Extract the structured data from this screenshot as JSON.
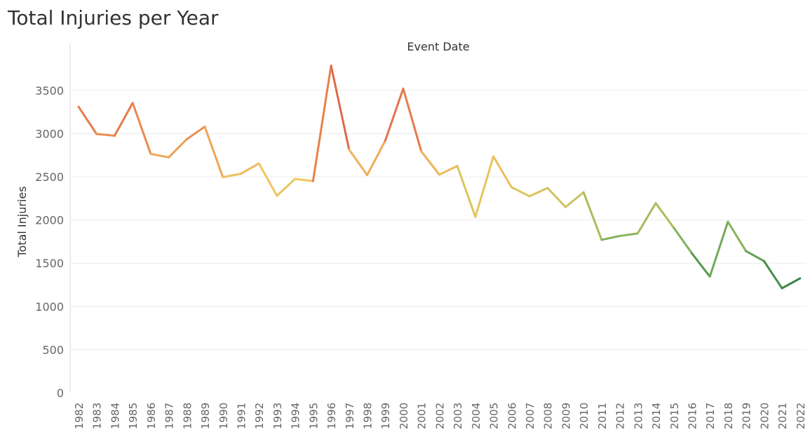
{
  "page_title": "Total Injuries per Year",
  "chart_data": {
    "type": "line",
    "title": "Total Injuries per Year",
    "column_header": "Event Date",
    "xlabel": "",
    "ylabel": "Total Injuries",
    "ylim": [
      0,
      3880
    ],
    "yticks": [
      0,
      500,
      1000,
      1500,
      2000,
      2500,
      3000,
      3500
    ],
    "grid": true,
    "legend": "none",
    "color_scale": {
      "high": "#c0293c",
      "mid_high": "#ec8a4f",
      "mid": "#f0c85f",
      "mid_low": "#8fb85c",
      "low": "#2e7d46"
    },
    "x": [
      "1982",
      "1983",
      "1984",
      "1985",
      "1986",
      "1987",
      "1988",
      "1989",
      "1990",
      "1991",
      "1992",
      "1993",
      "1994",
      "1995",
      "1996",
      "1997",
      "1998",
      "1999",
      "2000",
      "2001",
      "2002",
      "2003",
      "2004",
      "2005",
      "2006",
      "2007",
      "2008",
      "2009",
      "2010",
      "2011",
      "2012",
      "2013",
      "2014",
      "2015",
      "2016",
      "2017",
      "2018",
      "2019",
      "2020",
      "2021",
      "2022"
    ],
    "series": [
      {
        "values": [
          3310,
          2995,
          2975,
          3355,
          2765,
          2725,
          2935,
          3080,
          2495,
          2535,
          2655,
          2280,
          2475,
          2450,
          3785,
          2815,
          2520,
          2915,
          3520,
          2795,
          2525,
          2625,
          2035,
          2735,
          2380,
          2275,
          2370,
          2150,
          2320,
          1770,
          1815,
          1845,
          2195,
          1910,
          1615,
          1345,
          1980,
          1640,
          1525,
          1210,
          1325
        ]
      }
    ]
  }
}
